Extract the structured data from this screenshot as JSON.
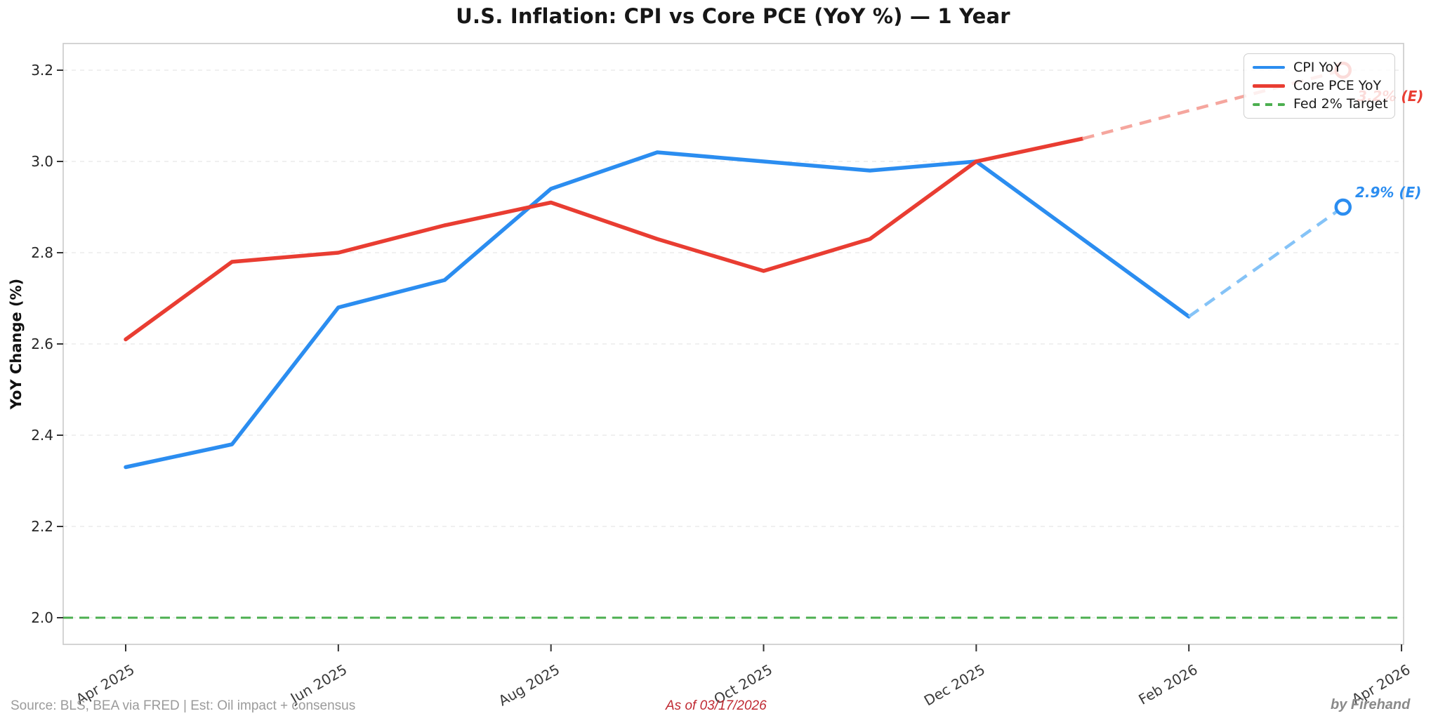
{
  "header": {
    "title": "U.S. Inflation: CPI vs Core PCE (YoY %) — 1 Year"
  },
  "footer": {
    "source": "Source: BLS, BEA via FRED | Est: Oil impact + consensus",
    "as_of": "As of 03/17/2026",
    "credit": "by Firehand"
  },
  "chart_data": {
    "type": "line",
    "title": "U.S. Inflation: CPI vs Core PCE (YoY %) — 1 Year",
    "xlabel": "",
    "ylabel": "YoY Change (%)",
    "ylim": [
      1.94,
      3.26
    ],
    "xlim_months": [
      -0.59,
      12.02
    ],
    "grid": "horizontal, faint dashed",
    "legend_position": "upper right",
    "yticks": [
      2.0,
      2.2,
      2.4,
      2.6,
      2.8,
      3.0,
      3.2
    ],
    "xticks": [
      {
        "m": 0,
        "label": "Apr 2025"
      },
      {
        "m": 2,
        "label": "Jun 2025"
      },
      {
        "m": 4,
        "label": "Aug 2025"
      },
      {
        "m": 6,
        "label": "Oct 2025"
      },
      {
        "m": 8,
        "label": "Dec 2025"
      },
      {
        "m": 10,
        "label": "Feb 2026"
      },
      {
        "m": 12,
        "label": "Apr 2026"
      }
    ],
    "months_note": "m = months after Apr 2025; estimates plotted at mid-Mar 2026",
    "series": [
      {
        "name": "CPI YoY",
        "color": "#2b8df0",
        "light_color": "#85c3f7",
        "style": "solid",
        "x_months": [
          0,
          1,
          2,
          3,
          4,
          5,
          6,
          7,
          8,
          9,
          10
        ],
        "values": [
          2.33,
          2.38,
          2.68,
          2.74,
          2.94,
          3.02,
          3.0,
          2.98,
          3.0,
          2.83,
          2.66
        ],
        "estimate": {
          "x_month": 11.45,
          "value": 2.9,
          "label": "2.9% (E)"
        }
      },
      {
        "name": "Core PCE YoY",
        "color": "#e93d32",
        "light_color": "#f5a69e",
        "style": "solid",
        "x_months": [
          0,
          1,
          2,
          3,
          4,
          5,
          6,
          7,
          8,
          9
        ],
        "values": [
          2.61,
          2.78,
          2.8,
          2.86,
          2.91,
          2.83,
          2.76,
          2.83,
          3.0,
          3.05
        ],
        "estimate": {
          "x_month": 11.45,
          "value": 3.2,
          "label": "3.2% (E)"
        }
      },
      {
        "name": "Fed 2% Target",
        "color": "#4caf50",
        "style": "dashed",
        "type": "hline",
        "value": 2.0
      }
    ],
    "legend": {
      "entries": [
        {
          "label": "CPI YoY"
        },
        {
          "label": "Core PCE YoY"
        },
        {
          "label": "Fed 2% Target"
        }
      ]
    }
  }
}
